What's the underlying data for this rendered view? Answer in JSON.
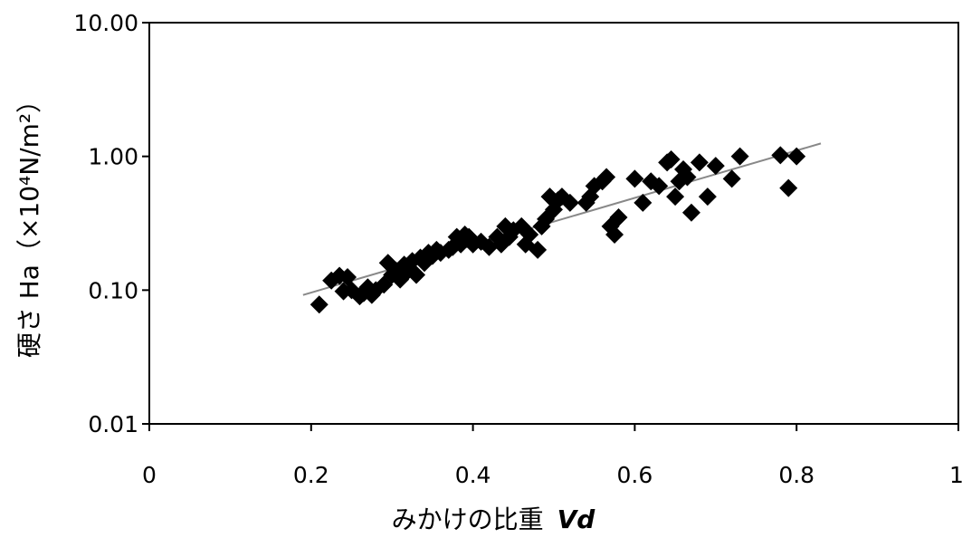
{
  "chart_data": {
    "type": "scatter",
    "title": "",
    "xlabel": "みかけの比重",
    "xlabel_symbol": "Vd",
    "ylabel": "硬さ Ha（×10⁴N/m²）",
    "xlim": [
      0,
      1
    ],
    "ylim": [
      0.01,
      10
    ],
    "y_scale": "log",
    "grid": false,
    "legend": "none",
    "x_ticks": [
      0,
      0.2,
      0.4,
      0.6,
      0.8,
      1
    ],
    "x_tick_labels": [
      "0",
      "0.2",
      "0.4",
      "0.6",
      "0.8",
      "1"
    ],
    "y_ticks": [
      0.01,
      0.1,
      1,
      10
    ],
    "y_tick_labels": [
      "0.01",
      "0.10",
      "1.00",
      "10.00"
    ],
    "marker": "diamond",
    "marker_color": "#000000",
    "trendline": {
      "x": [
        0.19,
        0.83
      ],
      "y": [
        0.092,
        1.25
      ],
      "color": "#888888"
    },
    "points": [
      [
        0.21,
        0.078
      ],
      [
        0.225,
        0.118
      ],
      [
        0.235,
        0.128
      ],
      [
        0.24,
        0.098
      ],
      [
        0.245,
        0.125
      ],
      [
        0.25,
        0.1
      ],
      [
        0.26,
        0.09
      ],
      [
        0.265,
        0.095
      ],
      [
        0.27,
        0.105
      ],
      [
        0.275,
        0.092
      ],
      [
        0.28,
        0.1
      ],
      [
        0.29,
        0.11
      ],
      [
        0.295,
        0.16
      ],
      [
        0.3,
        0.13
      ],
      [
        0.305,
        0.14
      ],
      [
        0.31,
        0.12
      ],
      [
        0.315,
        0.155
      ],
      [
        0.32,
        0.14
      ],
      [
        0.325,
        0.165
      ],
      [
        0.33,
        0.13
      ],
      [
        0.335,
        0.175
      ],
      [
        0.34,
        0.16
      ],
      [
        0.345,
        0.19
      ],
      [
        0.35,
        0.18
      ],
      [
        0.355,
        0.2
      ],
      [
        0.36,
        0.19
      ],
      [
        0.37,
        0.2
      ],
      [
        0.375,
        0.21
      ],
      [
        0.38,
        0.25
      ],
      [
        0.385,
        0.22
      ],
      [
        0.39,
        0.26
      ],
      [
        0.395,
        0.25
      ],
      [
        0.4,
        0.22
      ],
      [
        0.41,
        0.23
      ],
      [
        0.42,
        0.21
      ],
      [
        0.43,
        0.25
      ],
      [
        0.435,
        0.22
      ],
      [
        0.44,
        0.3
      ],
      [
        0.445,
        0.25
      ],
      [
        0.45,
        0.28
      ],
      [
        0.46,
        0.3
      ],
      [
        0.465,
        0.22
      ],
      [
        0.47,
        0.26
      ],
      [
        0.48,
        0.2
      ],
      [
        0.485,
        0.3
      ],
      [
        0.49,
        0.34
      ],
      [
        0.495,
        0.5
      ],
      [
        0.5,
        0.4
      ],
      [
        0.505,
        0.47
      ],
      [
        0.51,
        0.5
      ],
      [
        0.52,
        0.45
      ],
      [
        0.54,
        0.45
      ],
      [
        0.545,
        0.5
      ],
      [
        0.55,
        0.6
      ],
      [
        0.56,
        0.65
      ],
      [
        0.565,
        0.7
      ],
      [
        0.57,
        0.3
      ],
      [
        0.575,
        0.26
      ],
      [
        0.58,
        0.35
      ],
      [
        0.6,
        0.68
      ],
      [
        0.61,
        0.45
      ],
      [
        0.62,
        0.65
      ],
      [
        0.63,
        0.6
      ],
      [
        0.64,
        0.9
      ],
      [
        0.645,
        0.95
      ],
      [
        0.65,
        0.5
      ],
      [
        0.655,
        0.65
      ],
      [
        0.66,
        0.8
      ],
      [
        0.665,
        0.7
      ],
      [
        0.67,
        0.38
      ],
      [
        0.68,
        0.9
      ],
      [
        0.69,
        0.5
      ],
      [
        0.7,
        0.85
      ],
      [
        0.72,
        0.68
      ],
      [
        0.73,
        1.0
      ],
      [
        0.78,
        1.02
      ],
      [
        0.79,
        0.58
      ],
      [
        0.8,
        1.0
      ]
    ]
  }
}
